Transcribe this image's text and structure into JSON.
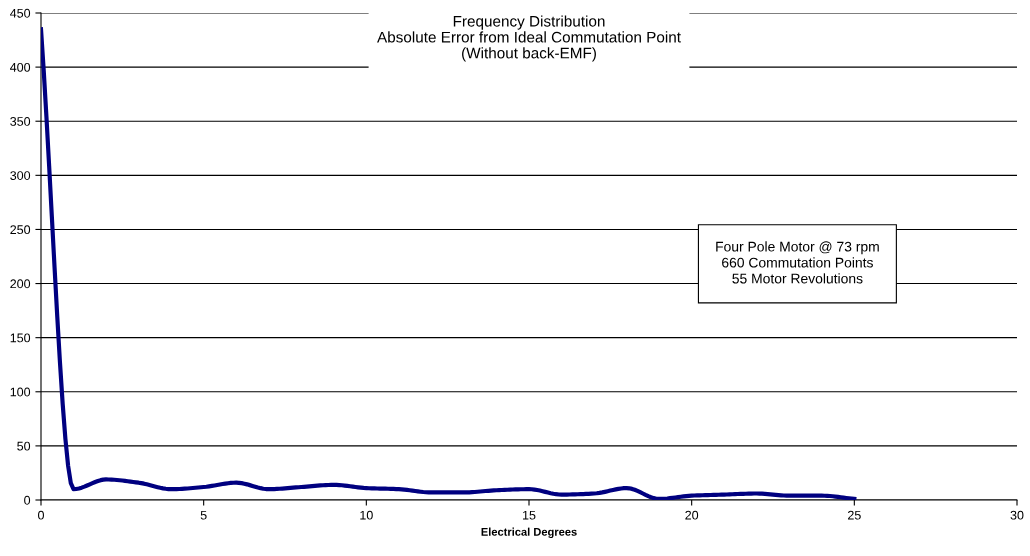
{
  "chart_data": {
    "type": "line",
    "title": "Frequency Distribution\nAbsolute Error from Ideal Commutation Point\n(Without back-EMF)",
    "xlabel": "Electrical Degrees",
    "x": [
      0,
      1,
      2,
      3,
      4,
      5,
      6,
      7,
      8,
      9,
      10,
      11,
      12,
      13,
      14,
      15,
      16,
      17,
      18,
      19,
      20,
      21,
      22,
      23,
      24,
      25
    ],
    "series": [
      {
        "color": "#000080",
        "values": [
          435,
          10,
          19,
          16,
          10,
          12,
          16,
          10,
          12,
          14,
          11,
          10,
          7,
          7,
          9,
          10,
          5,
          6,
          11,
          1,
          4,
          5,
          6,
          4,
          4,
          1
        ]
      }
    ],
    "xlim": [
      0,
      30
    ],
    "xticks": [
      0,
      5,
      10,
      15,
      20,
      25,
      30
    ],
    "ylim": [
      0,
      450
    ],
    "yticks": [
      0,
      50,
      100,
      150,
      200,
      250,
      300,
      350,
      400,
      450
    ],
    "grid": "y",
    "marker": "none",
    "line_style": "solid",
    "annotations": [
      "Four Pole Motor @ 73 rpm\n660 Commutation Points\n55 Motor Revolutions"
    ]
  }
}
